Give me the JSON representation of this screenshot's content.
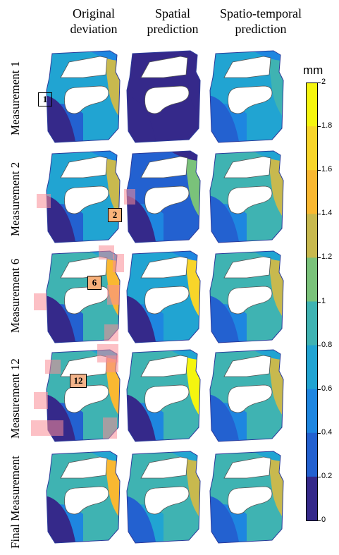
{
  "columns": [
    "Original\ndeviation",
    "Spatial\nprediction",
    "Spatio-temporal\nprediction"
  ],
  "rows": [
    "Measurement 1",
    "Measurement 2",
    "Measurement 6",
    "Measurement 12",
    "Final Measurement"
  ],
  "badges": [
    "1",
    "2",
    "6",
    "12"
  ],
  "colorbar": {
    "unit": "mm",
    "ticks": [
      "2",
      "1.8",
      "1.6",
      "1.4",
      "1.2",
      "1",
      "0.8",
      "0.6",
      "0.4",
      "0.2",
      "0"
    ],
    "colors": [
      "#f5f50f",
      "#f8d52a",
      "#f9b831",
      "#c8b94e",
      "#7ac27a",
      "#3fb3b2",
      "#21a4d2",
      "#1e86e0",
      "#2361d0",
      "#35298a"
    ]
  }
}
